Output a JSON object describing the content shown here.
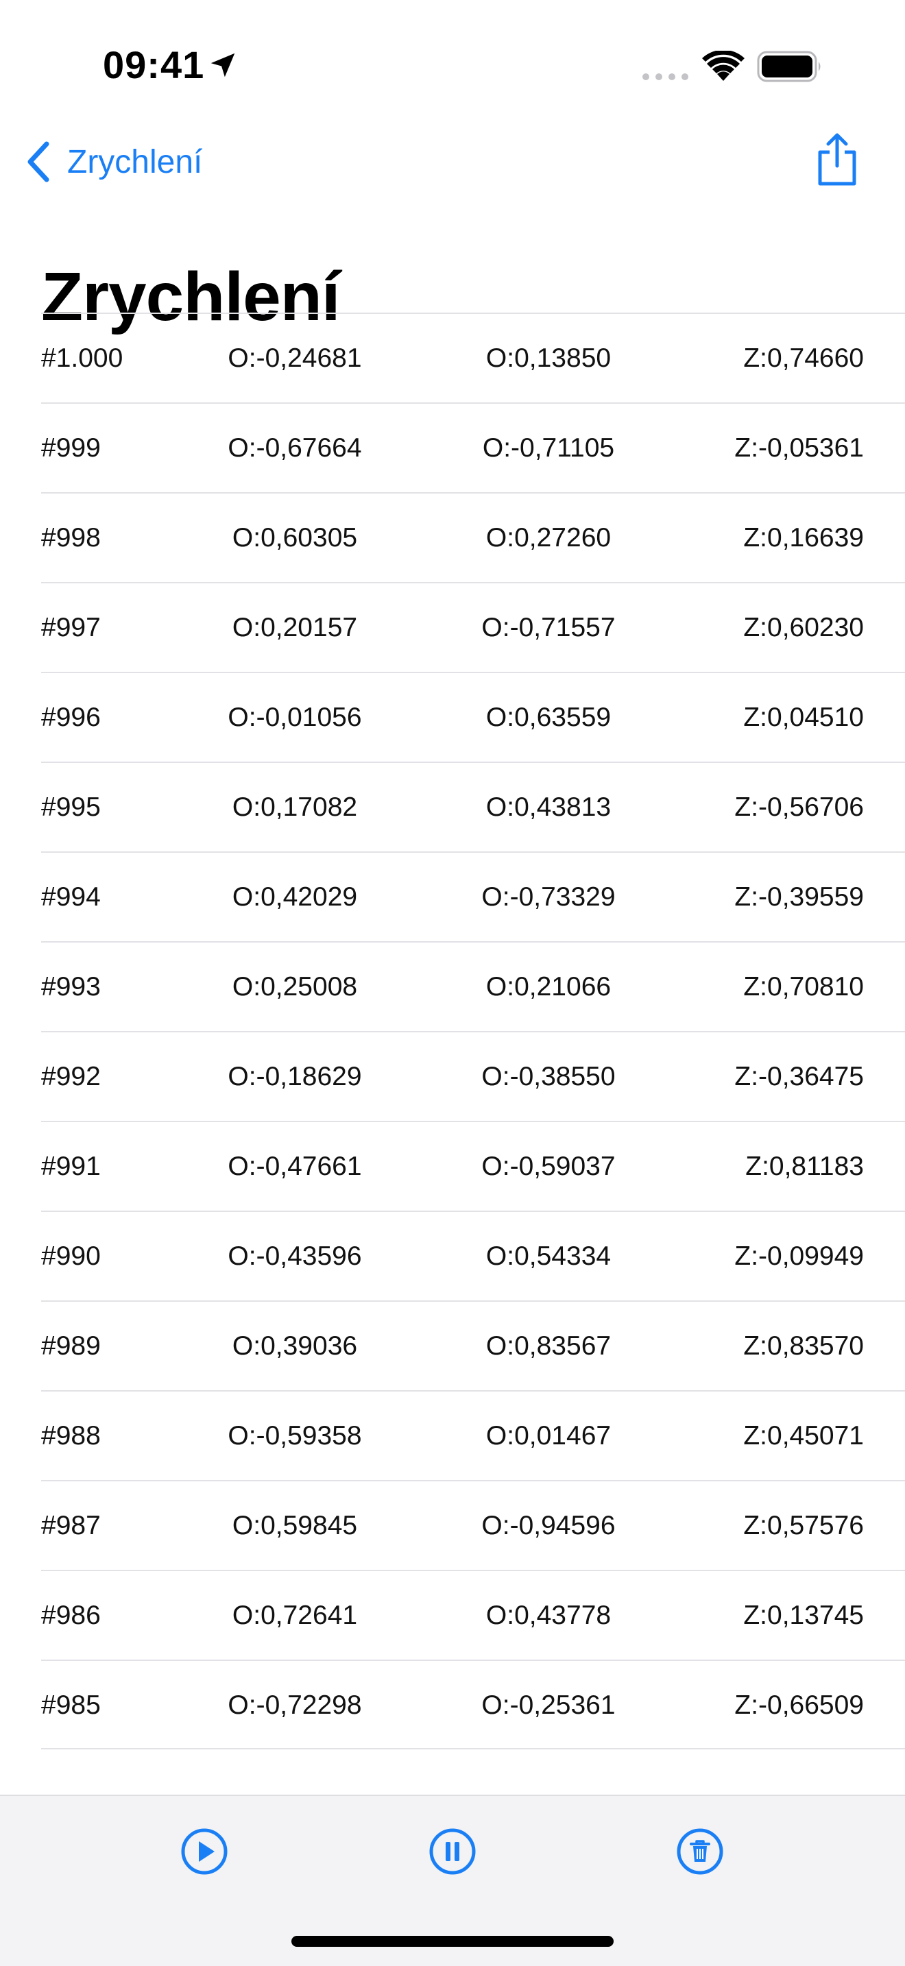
{
  "status_bar": {
    "time": "09:41"
  },
  "nav": {
    "back_label": "Zrychlení",
    "title": "Zrychlení"
  },
  "colors": {
    "accent": "#1a7ff5",
    "separator": "#e2e2e6",
    "toolbar_bg": "#f3f3f5"
  },
  "rows": [
    {
      "id": "#1.000",
      "x": "O:-0,24681",
      "y": "O:0,13850",
      "z": "Z:0,74660"
    },
    {
      "id": "#999",
      "x": "O:-0,67664",
      "y": "O:-0,71105",
      "z": "Z:-0,05361"
    },
    {
      "id": "#998",
      "x": "O:0,60305",
      "y": "O:0,27260",
      "z": "Z:0,16639"
    },
    {
      "id": "#997",
      "x": "O:0,20157",
      "y": "O:-0,71557",
      "z": "Z:0,60230"
    },
    {
      "id": "#996",
      "x": "O:-0,01056",
      "y": "O:0,63559",
      "z": "Z:0,04510"
    },
    {
      "id": "#995",
      "x": "O:0,17082",
      "y": "O:0,43813",
      "z": "Z:-0,56706"
    },
    {
      "id": "#994",
      "x": "O:0,42029",
      "y": "O:-0,73329",
      "z": "Z:-0,39559"
    },
    {
      "id": "#993",
      "x": "O:0,25008",
      "y": "O:0,21066",
      "z": "Z:0,70810"
    },
    {
      "id": "#992",
      "x": "O:-0,18629",
      "y": "O:-0,38550",
      "z": "Z:-0,36475"
    },
    {
      "id": "#991",
      "x": "O:-0,47661",
      "y": "O:-0,59037",
      "z": "Z:0,81183"
    },
    {
      "id": "#990",
      "x": "O:-0,43596",
      "y": "O:0,54334",
      "z": "Z:-0,09949"
    },
    {
      "id": "#989",
      "x": "O:0,39036",
      "y": "O:0,83567",
      "z": "Z:0,83570"
    },
    {
      "id": "#988",
      "x": "O:-0,59358",
      "y": "O:0,01467",
      "z": "Z:0,45071"
    },
    {
      "id": "#987",
      "x": "O:0,59845",
      "y": "O:-0,94596",
      "z": "Z:0,57576"
    },
    {
      "id": "#986",
      "x": "O:0,72641",
      "y": "O:0,43778",
      "z": "Z:0,13745"
    },
    {
      "id": "#985",
      "x": "O:-0,72298",
      "y": "O:-0,25361",
      "z": "Z:-0,66509"
    }
  ],
  "toolbar": {
    "icons": [
      "play-icon",
      "pause-icon",
      "trash-icon"
    ]
  }
}
